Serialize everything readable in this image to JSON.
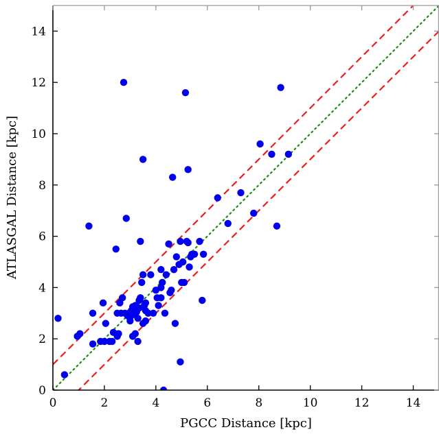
{
  "chart_data": {
    "type": "scatter",
    "title": "",
    "xlabel": "PGCC Distance [kpc]",
    "ylabel": "ATLASGAL Distance [kpc]",
    "xlim": [
      0,
      15
    ],
    "ylim": [
      0,
      15
    ],
    "xticks": [
      "0",
      "2",
      "4",
      "6",
      "8",
      "10",
      "12",
      "14"
    ],
    "yticks": [
      "0",
      "2",
      "4",
      "6",
      "8",
      "10",
      "12",
      "14"
    ],
    "grid": false,
    "legend": "none",
    "colors": {
      "points": "#0000ee",
      "offset_lines": "#ee1c1c",
      "identity_line": "#1a8a1a",
      "axes": "#000000",
      "frame_ticks": "#999999"
    },
    "reference_lines": [
      {
        "kind": "identity",
        "style": "dotted",
        "color": "#1a8a1a",
        "slope": 1,
        "intercept": 0
      },
      {
        "kind": "offset",
        "style": "dashed",
        "color": "#ee1c1c",
        "slope": 1,
        "intercept": 1
      },
      {
        "kind": "offset",
        "style": "dashed",
        "color": "#ee1c1c",
        "slope": 1,
        "intercept": -1
      }
    ],
    "series": [
      {
        "points": [
          [
            0.2,
            2.8
          ],
          [
            0.45,
            0.6
          ],
          [
            0.95,
            2.1
          ],
          [
            1.05,
            2.2
          ],
          [
            1.4,
            6.4
          ],
          [
            1.55,
            1.8
          ],
          [
            1.55,
            3.0
          ],
          [
            1.85,
            1.9
          ],
          [
            1.95,
            3.4
          ],
          [
            2.0,
            1.9
          ],
          [
            2.05,
            2.6
          ],
          [
            2.2,
            1.9
          ],
          [
            2.3,
            1.9
          ],
          [
            2.35,
            2.25
          ],
          [
            2.45,
            5.5
          ],
          [
            2.5,
            2.1
          ],
          [
            2.5,
            3.0
          ],
          [
            2.55,
            2.2
          ],
          [
            2.6,
            3.4
          ],
          [
            2.65,
            3.0
          ],
          [
            2.7,
            3.6
          ],
          [
            2.75,
            12.0
          ],
          [
            2.8,
            3.0
          ],
          [
            2.85,
            6.7
          ],
          [
            2.9,
            2.9
          ],
          [
            2.95,
            3.0
          ],
          [
            3.0,
            2.7
          ],
          [
            3.0,
            2.85
          ],
          [
            3.05,
            3.1
          ],
          [
            3.1,
            3.25
          ],
          [
            3.1,
            2.1
          ],
          [
            3.15,
            2.95
          ],
          [
            3.2,
            2.2
          ],
          [
            3.2,
            3.3
          ],
          [
            3.25,
            3.05
          ],
          [
            3.3,
            2.8
          ],
          [
            3.3,
            1.9
          ],
          [
            3.35,
            3.2
          ],
          [
            3.35,
            3.5
          ],
          [
            3.4,
            3.6
          ],
          [
            3.4,
            5.8
          ],
          [
            3.45,
            4.2
          ],
          [
            3.5,
            4.5
          ],
          [
            3.5,
            2.6
          ],
          [
            3.5,
            9.0
          ],
          [
            3.55,
            3.3
          ],
          [
            3.6,
            3.1
          ],
          [
            3.6,
            2.7
          ],
          [
            3.6,
            3.4
          ],
          [
            3.7,
            3.0
          ],
          [
            3.8,
            4.5
          ],
          [
            3.9,
            3.0
          ],
          [
            4.0,
            3.9
          ],
          [
            4.05,
            3.6
          ],
          [
            4.1,
            3.3
          ],
          [
            4.2,
            3.6
          ],
          [
            4.2,
            4.0
          ],
          [
            4.2,
            4.7
          ],
          [
            4.25,
            4.2
          ],
          [
            4.3,
            0.0
          ],
          [
            4.35,
            3.0
          ],
          [
            4.4,
            4.5
          ],
          [
            4.5,
            5.7
          ],
          [
            4.55,
            3.8
          ],
          [
            4.6,
            3.9
          ],
          [
            4.65,
            8.3
          ],
          [
            4.7,
            4.7
          ],
          [
            4.75,
            2.6
          ],
          [
            4.8,
            5.2
          ],
          [
            4.9,
            4.9
          ],
          [
            4.95,
            5.8
          ],
          [
            4.95,
            1.1
          ],
          [
            5.0,
            4.2
          ],
          [
            5.05,
            5.0
          ],
          [
            5.1,
            4.2
          ],
          [
            5.15,
            11.6
          ],
          [
            5.2,
            5.8
          ],
          [
            5.25,
            8.6
          ],
          [
            5.25,
            5.75
          ],
          [
            5.3,
            4.8
          ],
          [
            5.35,
            5.2
          ],
          [
            5.4,
            5.3
          ],
          [
            5.5,
            5.3
          ],
          [
            5.7,
            5.8
          ],
          [
            5.8,
            3.5
          ],
          [
            5.85,
            5.3
          ],
          [
            6.4,
            7.5
          ],
          [
            6.8,
            6.5
          ],
          [
            7.3,
            7.7
          ],
          [
            7.8,
            6.9
          ],
          [
            8.05,
            9.6
          ],
          [
            8.5,
            9.2
          ],
          [
            8.7,
            6.4
          ],
          [
            8.85,
            11.8
          ],
          [
            9.15,
            9.2
          ]
        ]
      }
    ]
  }
}
